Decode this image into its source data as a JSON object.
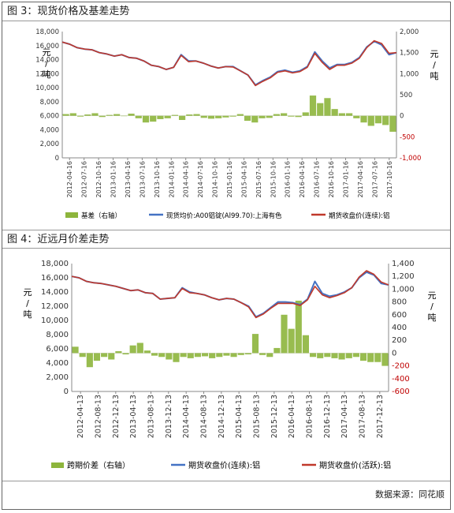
{
  "figures": [
    {
      "caption": "图 3：现货价格及基差走势",
      "left_unit": "元\n/\n吨",
      "right_unit": "元\n/\n吨",
      "legend": [
        "基差（右轴）",
        "现货均价:A00铝锭(Al99.70):上海有色",
        "期货收盘价(连续):铝"
      ]
    },
    {
      "caption": "图 4：近远月价差走势",
      "left_unit": "元\n/\n吨",
      "right_unit": "元\n/\n吨",
      "legend": [
        "跨期价差（右轴）",
        "期货收盘价(连续):铝",
        "期货收盘价(活跃):铝"
      ]
    }
  ],
  "source": "数据来源：同花顺",
  "colors": {
    "bar": "#8db53c",
    "blue": "#4472c4",
    "red": "#c0392b",
    "neg": "#c00000"
  },
  "chart_data": [
    {
      "type": "line",
      "title": "图 3：现货价格及基差走势",
      "x_ticks": [
        "2012-04-16",
        "2012-07-16",
        "2012-10-16",
        "2013-01-16",
        "2013-04-16",
        "2013-07-16",
        "2013-10-16",
        "2014-01-16",
        "2014-04-16",
        "2014-07-16",
        "2014-10-16",
        "2015-01-16",
        "2015-04-16",
        "2015-07-16",
        "2015-10-16",
        "2016-01-16",
        "2016-04-16",
        "2016-07-16",
        "2016-10-16",
        "2017-01-16",
        "2017-04-16",
        "2017-07-16",
        "2017-10-16"
      ],
      "ylim_left": [
        0,
        18000
      ],
      "y_ticks_left": [
        "0",
        "2,000",
        "4,000",
        "6,000",
        "8,000",
        "10,000",
        "12,000",
        "14,000",
        "16,000",
        "18,000"
      ],
      "ylim_right": [
        -1000,
        2000
      ],
      "y_ticks_right": [
        "-1,000",
        "-500",
        "0",
        "500",
        "1,000",
        "1,500",
        "2,000"
      ],
      "series": [
        {
          "name": "现货均价:A00铝锭(Al99.70):上海有色",
          "axis": "left",
          "values": [
            16500,
            16200,
            15700,
            15500,
            15400,
            15000,
            14800,
            14500,
            14700,
            14300,
            14200,
            13800,
            13200,
            13000,
            12600,
            12900,
            14700,
            13800,
            13800,
            13500,
            13100,
            12800,
            13000,
            13000,
            12400,
            11800,
            10400,
            11000,
            11500,
            12300,
            12500,
            12200,
            12400,
            13000,
            15100,
            13800,
            12800,
            13300,
            13300,
            13600,
            14300,
            15800,
            16600,
            16100,
            14700,
            15000
          ]
        },
        {
          "name": "期货收盘价(连续):铝",
          "axis": "left",
          "values": [
            16500,
            16200,
            15700,
            15500,
            15400,
            15000,
            14800,
            14500,
            14700,
            14300,
            14200,
            13800,
            13200,
            13000,
            12600,
            12900,
            14600,
            13700,
            13800,
            13500,
            13100,
            12800,
            13000,
            12950,
            12400,
            11800,
            10300,
            10900,
            11400,
            12200,
            12400,
            12100,
            12300,
            12900,
            14900,
            13600,
            12600,
            13200,
            13200,
            13500,
            14200,
            15700,
            16700,
            16300,
            14900,
            15000
          ]
        },
        {
          "name": "基差（右轴）",
          "axis": "right",
          "type": "bar",
          "values": [
            40,
            60,
            -20,
            30,
            60,
            -30,
            20,
            40,
            -10,
            50,
            -60,
            -160,
            -140,
            -80,
            -60,
            20,
            -100,
            30,
            40,
            -50,
            -70,
            -60,
            -40,
            -20,
            40,
            -120,
            -160,
            -60,
            -50,
            40,
            60,
            -20,
            -30,
            80,
            480,
            300,
            420,
            160,
            60,
            60,
            -60,
            -160,
            -240,
            -180,
            -220,
            -380
          ]
        }
      ]
    },
    {
      "type": "line",
      "title": "图 4：近远月价差走势",
      "x_ticks": [
        "2012-04-13",
        "2012-08-13",
        "2012-12-13",
        "2013-04-13",
        "2013-08-13",
        "2013-12-13",
        "2014-04-13",
        "2014-08-13",
        "2014-12-13",
        "2015-04-13",
        "2015-08-13",
        "2015-12-13",
        "2016-04-13",
        "2016-08-13",
        "2016-12-13",
        "2017-04-13",
        "2017-08-13",
        "2017-12-13"
      ],
      "ylim_left": [
        0,
        18000
      ],
      "y_ticks_left": [
        "0",
        "2,000",
        "4,000",
        "6,000",
        "8,000",
        "10,000",
        "12,000",
        "14,000",
        "16,000",
        "18,000"
      ],
      "ylim_right": [
        -600,
        1400
      ],
      "y_ticks_right": [
        "-600",
        "-400",
        "-200",
        "0",
        "200",
        "400",
        "600",
        "800",
        "1,000",
        "1,200",
        "1,400"
      ],
      "series": [
        {
          "name": "期货收盘价(连续):铝",
          "axis": "left",
          "values": [
            16200,
            16000,
            15500,
            15300,
            15200,
            15000,
            14800,
            14500,
            14200,
            14300,
            13900,
            13800,
            13000,
            13100,
            13200,
            14600,
            14000,
            13800,
            13600,
            13200,
            12900,
            13100,
            13000,
            12500,
            12000,
            10500,
            11000,
            11800,
            12600,
            12600,
            12500,
            12200,
            13000,
            15500,
            13800,
            13400,
            13600,
            14000,
            14600,
            16000,
            16800,
            16400,
            15200,
            15000
          ]
        },
        {
          "name": "期货收盘价(活跃):铝",
          "axis": "left",
          "values": [
            16200,
            16000,
            15500,
            15300,
            15200,
            15000,
            14800,
            14500,
            14200,
            14300,
            13900,
            13800,
            13000,
            13100,
            13200,
            14500,
            13900,
            13800,
            13600,
            13200,
            12900,
            13100,
            13000,
            12500,
            11900,
            10400,
            10900,
            11700,
            12400,
            12400,
            12400,
            12100,
            12900,
            14800,
            13600,
            13200,
            13500,
            13900,
            14600,
            16100,
            17000,
            16500,
            15400,
            15000
          ]
        },
        {
          "name": "跨期价差（右轴）",
          "axis": "right",
          "type": "bar",
          "values": [
            100,
            -60,
            -220,
            -120,
            -60,
            -100,
            30,
            -20,
            120,
            160,
            40,
            -40,
            -60,
            -100,
            -140,
            -60,
            -80,
            -60,
            -50,
            -80,
            -60,
            -40,
            -60,
            -30,
            -20,
            300,
            -30,
            -60,
            80,
            600,
            380,
            820,
            280,
            -60,
            -80,
            -60,
            -80,
            -100,
            -80,
            -60,
            -120,
            -140,
            -140,
            -200
          ]
        }
      ]
    }
  ]
}
